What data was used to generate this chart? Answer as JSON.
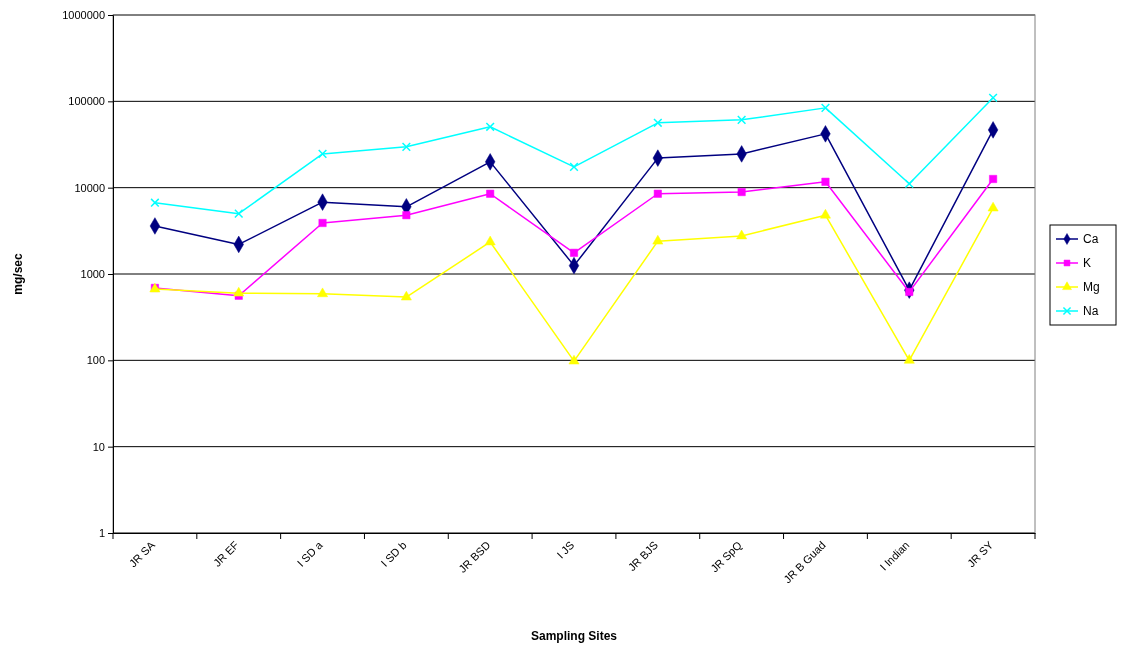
{
  "chart_data": {
    "type": "line",
    "xlabel": "Sampling Sites",
    "ylabel": "mg/sec",
    "categories": [
      "JR SA",
      "JR EF",
      "I SD a",
      "I SD b",
      "JR BSD",
      "I JS",
      "JR BJS",
      "JR SpQ",
      "JR B Guad",
      "I Indian",
      "JR SY"
    ],
    "series": [
      {
        "name": "Ca",
        "color": "#000080",
        "marker": "diamond",
        "values": [
          3600,
          2200,
          6800,
          6000,
          19900,
          1250,
          22000,
          24600,
          42000,
          650,
          46700
        ]
      },
      {
        "name": "K",
        "color": "#ff00ff",
        "marker": "square",
        "values": [
          690,
          560,
          3900,
          4800,
          8500,
          1760,
          8500,
          8900,
          11700,
          620,
          12600
        ]
      },
      {
        "name": "Mg",
        "color": "#ffff00",
        "marker": "triangle",
        "values": [
          670,
          600,
          590,
          540,
          2350,
          98,
          2400,
          2760,
          4800,
          100,
          5800
        ]
      },
      {
        "name": "Na",
        "color": "#00ffff",
        "marker": "cross",
        "values": [
          6700,
          5000,
          24600,
          29700,
          50700,
          17400,
          56400,
          61000,
          84000,
          11100,
          110000
        ]
      }
    ],
    "log": true,
    "ylim": [
      1,
      1000000
    ],
    "yticks": [
      1,
      10,
      100,
      1000,
      10000,
      100000,
      1000000
    ],
    "grid": "y",
    "legend": "right"
  }
}
